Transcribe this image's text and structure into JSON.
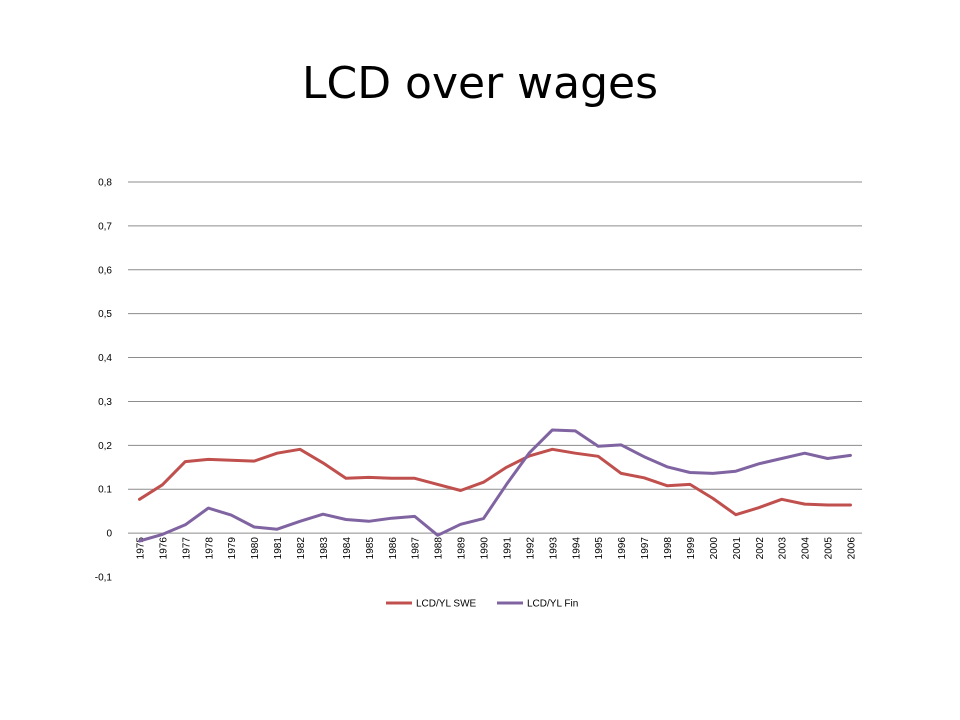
{
  "slide": {
    "title": "LCD over wages"
  },
  "chart_data": {
    "type": "line",
    "title": "",
    "xlabel": "",
    "ylabel": "",
    "ylim": [
      -0.1,
      0.8
    ],
    "y_ticks": [
      "-0,1",
      "0",
      "0.1",
      "0,2",
      "0,3",
      "0,4",
      "0,5",
      "0,6",
      "0,7",
      "0,8"
    ],
    "y_tick_values": [
      -0.1,
      0,
      0.1,
      0.2,
      0.3,
      0.4,
      0.5,
      0.6,
      0.7,
      0.8
    ],
    "grid": true,
    "legend_position": "bottom",
    "categories": [
      "1975",
      "1976",
      "1977",
      "1978",
      "1979",
      "1980",
      "1981",
      "1982",
      "1983",
      "1984",
      "1985",
      "1986",
      "1987",
      "1988",
      "1989",
      "1990",
      "1991",
      "1992",
      "1993",
      "1994",
      "1995",
      "1996",
      "1997",
      "1998",
      "1999",
      "2000",
      "2001",
      "2002",
      "2003",
      "2004",
      "2005",
      "2006"
    ],
    "series": [
      {
        "name": "LCD/YL SWE",
        "color": "#c0504d",
        "values": [
          0.077,
          0.11,
          0.163,
          0.168,
          0.166,
          0.164,
          0.182,
          0.191,
          0.16,
          0.125,
          0.127,
          0.125,
          0.125,
          0.111,
          0.097,
          0.116,
          0.15,
          0.176,
          0.191,
          0.182,
          0.175,
          0.136,
          0.126,
          0.108,
          0.111,
          0.079,
          0.042,
          0.058,
          0.077,
          0.066,
          0.064,
          0.064
        ]
      },
      {
        "name": "LCD/YL Fin",
        "color": "#8064a2",
        "values": [
          -0.018,
          -0.003,
          0.019,
          0.057,
          0.041,
          0.014,
          0.009,
          0.027,
          0.043,
          0.031,
          0.027,
          0.034,
          0.038,
          -0.005,
          0.02,
          0.033,
          0.111,
          0.183,
          0.235,
          0.233,
          0.198,
          0.201,
          0.174,
          0.151,
          0.138,
          0.136,
          0.141,
          0.158,
          0.17,
          0.182,
          0.17,
          0.177
        ]
      }
    ]
  }
}
